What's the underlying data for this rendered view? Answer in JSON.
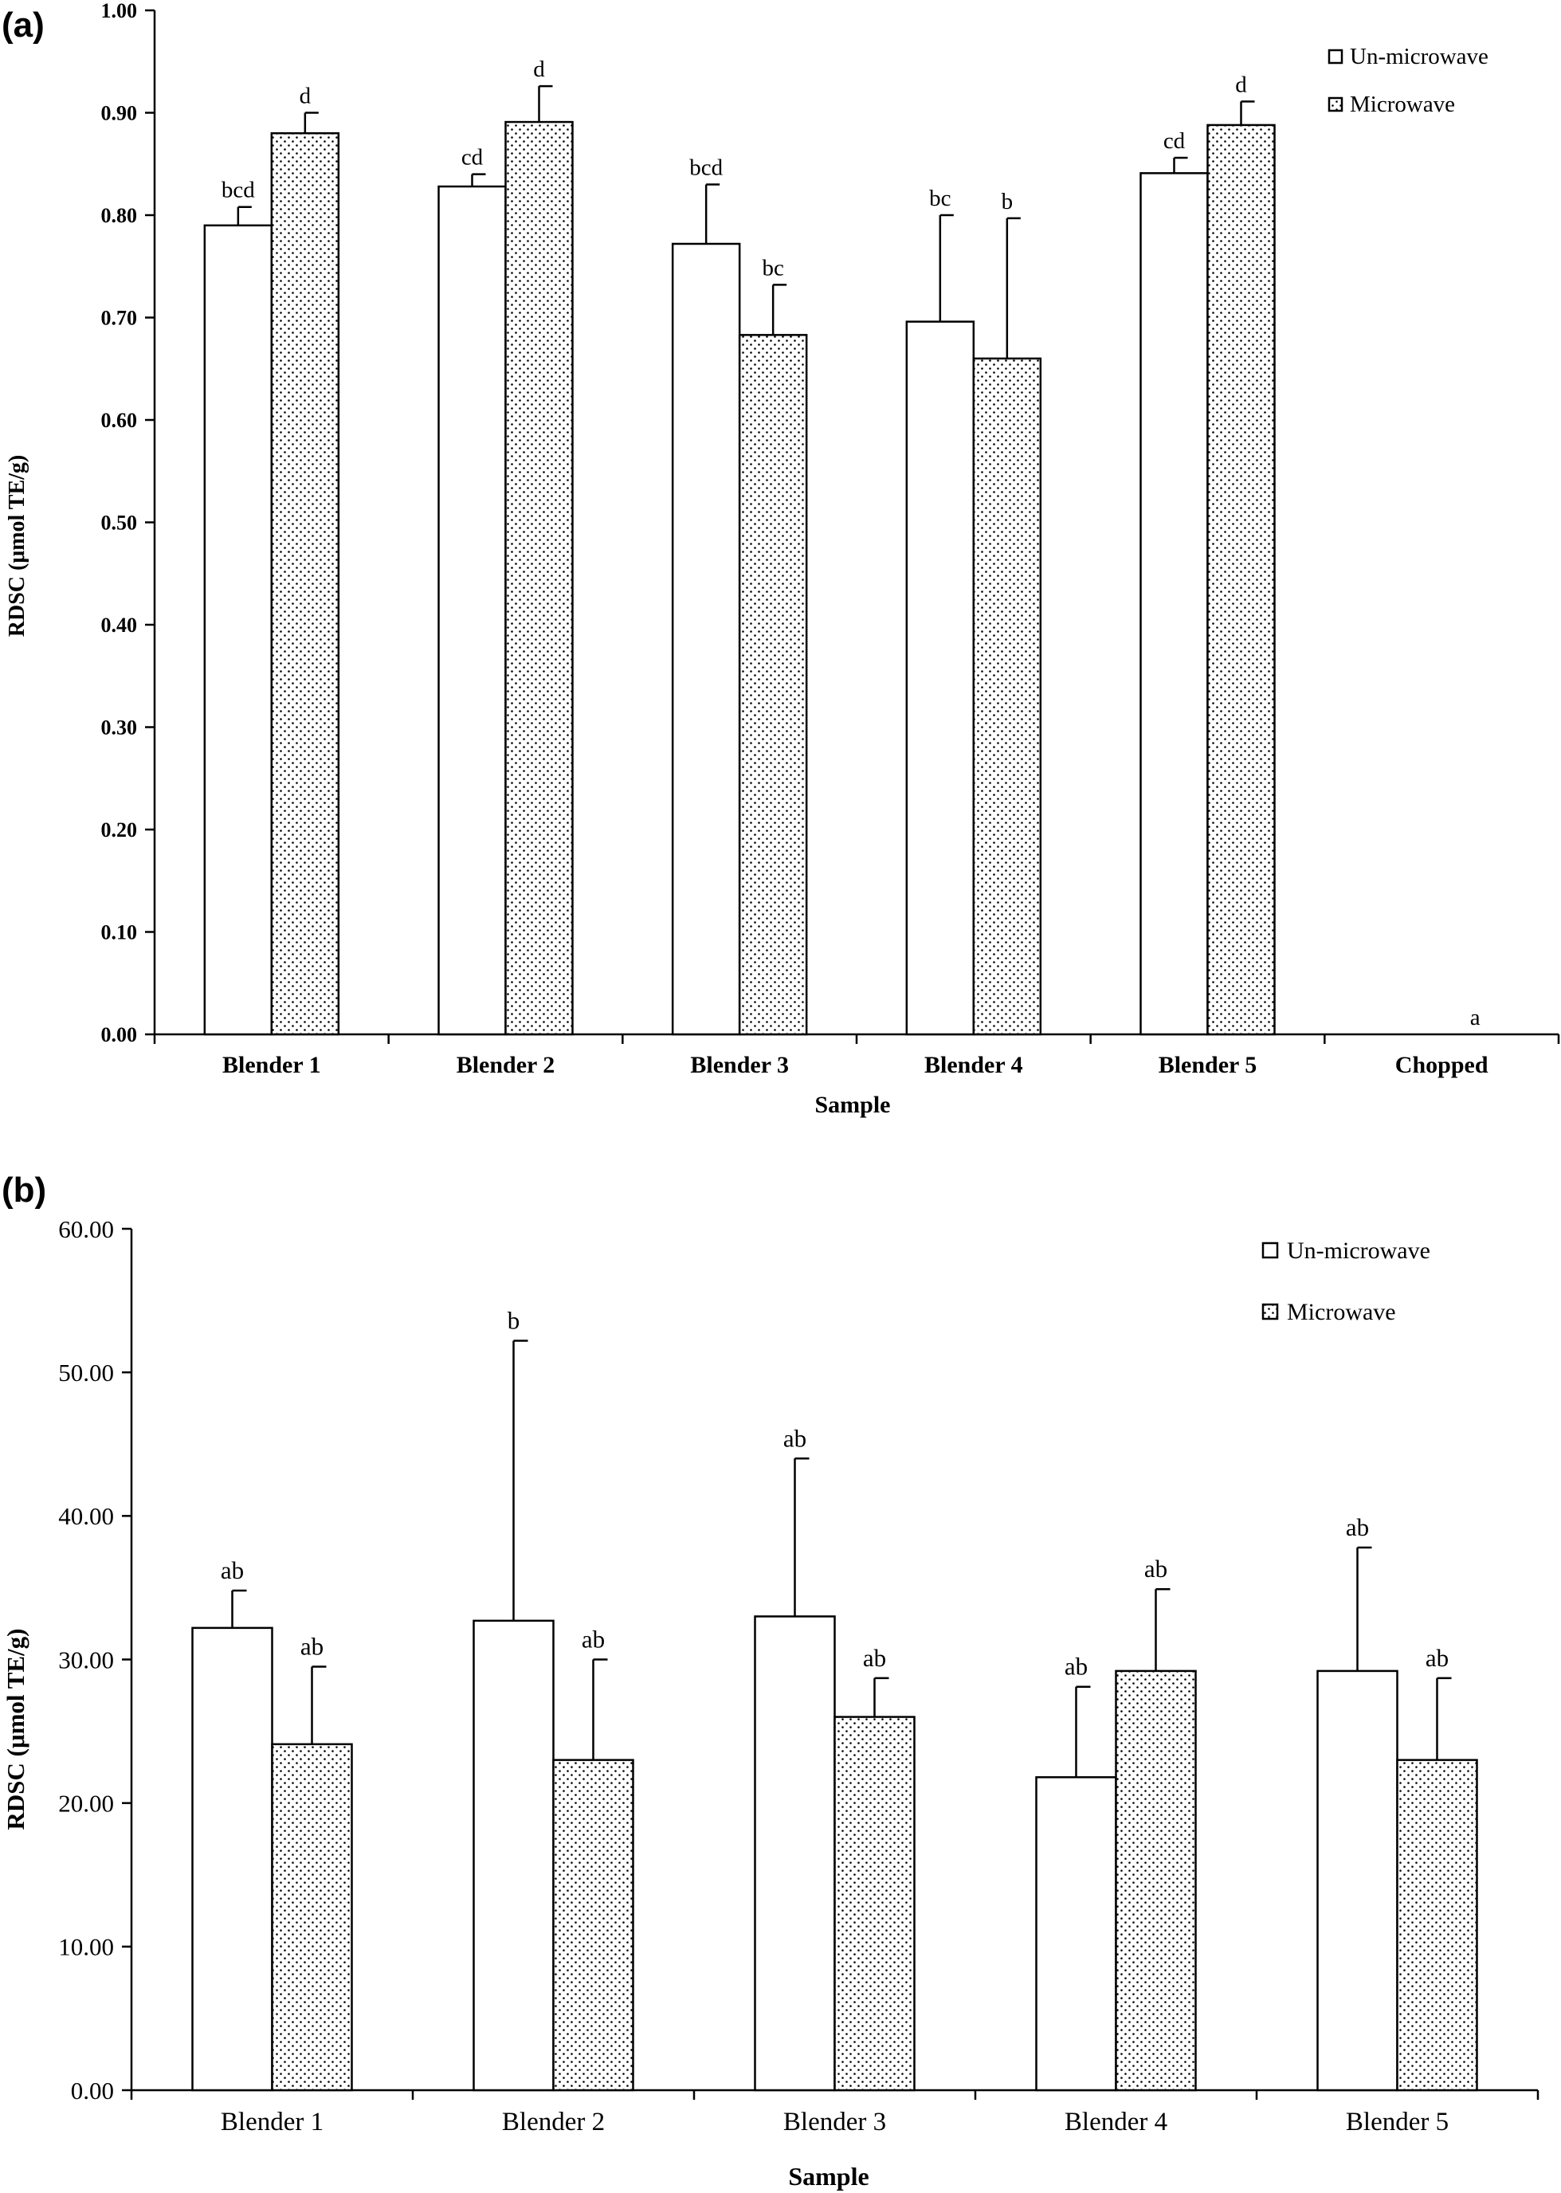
{
  "chart_data": [
    {
      "type": "bar",
      "panel_label": "(a)",
      "xlabel": "Sample",
      "ylabel": "RDSC (μmol TE/g)",
      "ylim": [
        0,
        1.0
      ],
      "yticks": [
        0.0,
        0.1,
        0.2,
        0.3,
        0.4,
        0.5,
        0.6,
        0.7,
        0.8,
        0.9,
        1.0
      ],
      "ytick_labels": [
        "0.00",
        "0.10",
        "0.20",
        "0.30",
        "0.40",
        "0.50",
        "0.60",
        "0.70",
        "0.80",
        "0.90",
        "1.00"
      ],
      "categories": [
        "Blender 1",
        "Blender 2",
        "Blender 3",
        "Blender 4",
        "Blender 5",
        "Chopped"
      ],
      "grid": false,
      "legend_position": "top-right",
      "series": [
        {
          "name": "Un-microwave",
          "pattern": "open",
          "values": [
            0.79,
            0.828,
            0.772,
            0.696,
            0.841,
            0.0
          ],
          "errors": [
            0.018,
            0.012,
            0.058,
            0.104,
            0.015,
            0.0
          ],
          "letters": [
            "bcd",
            "cd",
            "bcd",
            "bc",
            "cd",
            ""
          ]
        },
        {
          "name": "Microwave",
          "pattern": "dotted",
          "values": [
            0.88,
            0.891,
            0.683,
            0.66,
            0.888,
            0.0
          ],
          "errors": [
            0.02,
            0.035,
            0.049,
            0.137,
            0.023,
            0.0
          ],
          "letters": [
            "d",
            "d",
            "bc",
            "b",
            "d",
            "a"
          ]
        }
      ]
    },
    {
      "type": "bar",
      "panel_label": "(b)",
      "xlabel": "Sample",
      "ylabel": "RDSC (μmol TE/g)",
      "ylim": [
        0,
        60
      ],
      "yticks": [
        0,
        10,
        20,
        30,
        40,
        50,
        60
      ],
      "ytick_labels": [
        "0.00",
        "10.00",
        "20.00",
        "30.00",
        "40.00",
        "50.00",
        "60.00"
      ],
      "categories": [
        "Blender 1",
        "Blender 2",
        "Blender 3",
        "Blender 4",
        "Blender 5"
      ],
      "grid": false,
      "legend_position": "top-right",
      "series": [
        {
          "name": "Un-microwave",
          "pattern": "open",
          "values": [
            32.2,
            32.7,
            33.0,
            21.8,
            29.2
          ],
          "errors": [
            2.6,
            19.5,
            11.0,
            6.3,
            8.6
          ],
          "letters": [
            "ab",
            "b",
            "ab",
            "ab",
            "ab"
          ]
        },
        {
          "name": "Microwave",
          "pattern": "dotted",
          "values": [
            24.1,
            23.0,
            26.0,
            29.2,
            23.0
          ],
          "errors": [
            5.4,
            7.0,
            2.7,
            5.7,
            5.7
          ],
          "letters": [
            "ab",
            "ab",
            "ab",
            "ab",
            "ab"
          ]
        }
      ]
    }
  ]
}
